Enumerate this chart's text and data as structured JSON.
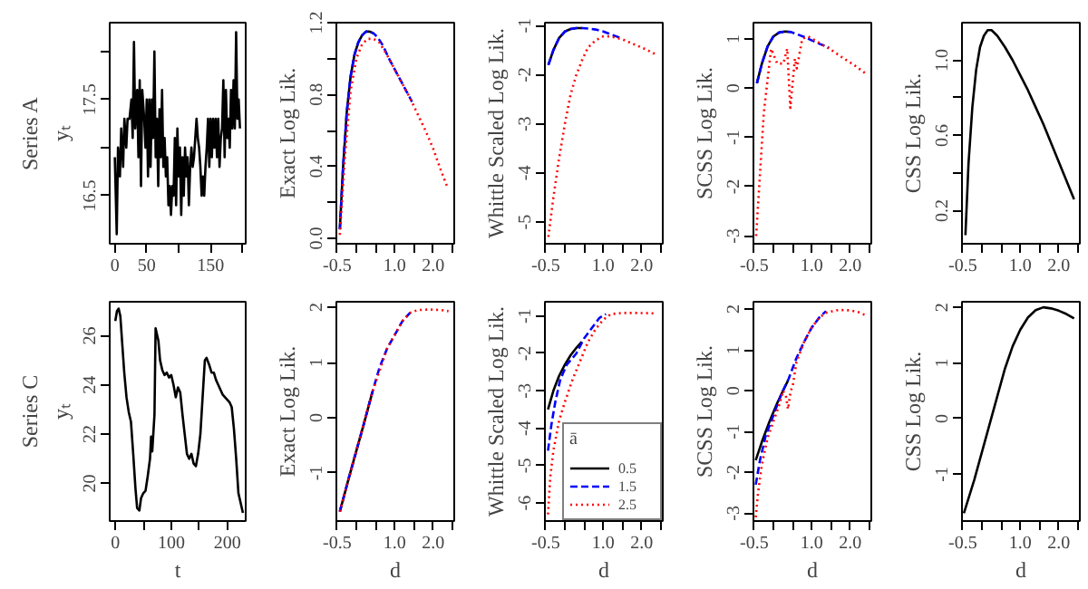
{
  "chart_data": [
    {
      "type": "line",
      "ylabel": "Series A\nyₜ",
      "xlim": [
        -8,
        205
      ],
      "ylim": [
        16.0,
        18.3
      ],
      "xticks": [
        0,
        50,
        {
          "value": 100,
          "label": null
        },
        150,
        {
          "value": 200,
          "label": null
        }
      ],
      "yticks": [
        16.5,
        {
          "value": 17,
          "label": null
        },
        17.5,
        {
          "value": 18,
          "label": null
        }
      ],
      "series": [
        {
          "color": "#000000",
          "line_style": "solid",
          "x": [
            0,
            3,
            5,
            8,
            10,
            13,
            15,
            18,
            20,
            23,
            26,
            28,
            30,
            32,
            35,
            37,
            39,
            41,
            43,
            46,
            48,
            50,
            52,
            54,
            56,
            58,
            60,
            62,
            64,
            66,
            68,
            70,
            72,
            74,
            76,
            78,
            80,
            82,
            84,
            86,
            88,
            90,
            92,
            94,
            96,
            98,
            100,
            102,
            104,
            106,
            108,
            110,
            112,
            114,
            116,
            118,
            120,
            122,
            124,
            126,
            128,
            130,
            132,
            134,
            136,
            138,
            140,
            142,
            144,
            146,
            148,
            150,
            152,
            154,
            156,
            158,
            160,
            162,
            164,
            166,
            168,
            170,
            172,
            174,
            176,
            178,
            180,
            182,
            184,
            186,
            188,
            190,
            192,
            194,
            196
          ],
          "values": [
            16.9,
            16.1,
            17.0,
            16.7,
            17.2,
            16.8,
            17.3,
            17.0,
            17.3,
            17.3,
            17.5,
            17.1,
            18.1,
            17.2,
            17.6,
            16.9,
            17.7,
            16.6,
            17.6,
            17.3,
            17.0,
            17.5,
            16.7,
            17.5,
            16.8,
            17.5,
            17.1,
            18.0,
            16.9,
            17.3,
            16.6,
            17.4,
            16.9,
            17.6,
            16.8,
            17.1,
            16.7,
            16.9,
            16.4,
            16.6,
            16.3,
            16.6,
            16.5,
            17.1,
            16.4,
            17.2,
            16.7,
            17.0,
            16.3,
            16.9,
            16.5,
            17.0,
            16.7,
            16.9,
            16.4,
            16.8,
            17.0,
            16.8,
            16.9,
            17.1,
            17.3,
            17.1,
            17.0,
            16.8,
            16.5,
            16.7,
            16.5,
            16.8,
            17.0,
            17.3,
            16.8,
            17.3,
            16.9,
            17.3,
            17.0,
            17.3,
            16.9,
            17.3,
            16.8,
            17.1,
            17.2,
            17.7,
            16.9,
            17.6,
            17.1,
            17.3,
            17.0,
            17.6,
            17.2,
            17.7,
            17.2,
            18.2,
            17.3,
            17.5,
            17.2
          ]
        }
      ]
    },
    {
      "type": "line",
      "ylabel": "Exact Log Lik.",
      "xlim": [
        -0.52,
        2.55
      ],
      "ylim": [
        -0.03,
        1.2
      ],
      "xticks": [
        -0.5,
        {
          "value": 0,
          "label": null
        },
        {
          "value": 0.5,
          "label": null
        },
        {
          "value": 1,
          "label": "1.0"
        },
        {
          "value": 1.5,
          "label": null
        },
        {
          "value": 2,
          "label": "2.0"
        },
        {
          "value": 2.5,
          "label": null
        }
      ],
      "yticks": [
        {
          "value": 0,
          "label": "0.0"
        },
        {
          "value": 0.2,
          "label": null
        },
        0.4,
        {
          "value": 0.6,
          "label": null
        },
        0.8,
        {
          "value": 1,
          "label": null
        },
        1.2
      ],
      "series": [
        {
          "color": "#000000",
          "line_style": "solid",
          "x": [
            -0.43,
            -0.35,
            -0.25,
            -0.15,
            -0.05,
            0.05,
            0.15,
            0.25,
            0.35,
            0.45
          ],
          "values": [
            0.05,
            0.38,
            0.7,
            0.9,
            1.02,
            1.09,
            1.13,
            1.15,
            1.15,
            1.14
          ]
        },
        {
          "color": "#0000ff",
          "line_style": "dashed",
          "x": [
            -0.43,
            -0.35,
            -0.25,
            -0.15,
            -0.05,
            0.05,
            0.15,
            0.25,
            0.35,
            0.45,
            0.55,
            0.7,
            0.85,
            1.0,
            1.15,
            1.3,
            1.45
          ],
          "values": [
            0.05,
            0.38,
            0.7,
            0.9,
            1.02,
            1.09,
            1.13,
            1.15,
            1.15,
            1.14,
            1.12,
            1.07,
            1.0,
            0.94,
            0.88,
            0.82,
            0.76
          ]
        },
        {
          "color": "#ff0000",
          "line_style": "dotted",
          "x": [
            -0.43,
            -0.3,
            -0.15,
            0,
            0.15,
            0.3,
            0.45,
            0.6,
            0.8,
            1.0,
            1.2,
            1.4,
            1.6,
            1.8,
            2.0,
            2.2,
            2.38
          ],
          "values": [
            0.02,
            0.45,
            0.82,
            1.0,
            1.08,
            1.11,
            1.11,
            1.09,
            1.02,
            0.94,
            0.86,
            0.78,
            0.69,
            0.6,
            0.5,
            0.38,
            0.28
          ]
        }
      ]
    },
    {
      "type": "line",
      "ylabel": "Whittle Scaled Log Lik.",
      "xlim": [
        -0.52,
        2.55
      ],
      "ylim": [
        -5.44,
        -0.94
      ],
      "xticks": [
        -0.5,
        {
          "value": 0,
          "label": null
        },
        {
          "value": 0.5,
          "label": null
        },
        {
          "value": 1,
          "label": "1.0"
        },
        {
          "value": 1.5,
          "label": null
        },
        {
          "value": 2,
          "label": "2.0"
        },
        {
          "value": 2.5,
          "label": null
        }
      ],
      "yticks": [
        -5,
        -4,
        -3,
        -2,
        -1
      ],
      "series": [
        {
          "color": "#000000",
          "line_style": "solid",
          "x": [
            -0.43,
            -0.3,
            -0.15,
            0,
            0.15,
            0.3,
            0.45
          ],
          "values": [
            -1.8,
            -1.5,
            -1.25,
            -1.12,
            -1.07,
            -1.05,
            -1.05
          ]
        },
        {
          "color": "#0000ff",
          "line_style": "dashed",
          "x": [
            -0.43,
            -0.3,
            -0.15,
            0,
            0.15,
            0.3,
            0.45,
            0.6,
            0.8,
            1.0,
            1.2,
            1.45
          ],
          "values": [
            -1.8,
            -1.5,
            -1.25,
            -1.12,
            -1.07,
            -1.05,
            -1.05,
            -1.06,
            -1.08,
            -1.12,
            -1.18,
            -1.25
          ]
        },
        {
          "color": "#ff0000",
          "line_style": "dotted",
          "x": [
            -0.43,
            -0.3,
            -0.15,
            0,
            0.15,
            0.3,
            0.45,
            0.6,
            0.8,
            1.0,
            1.2,
            1.5,
            1.8,
            2.1,
            2.4
          ],
          "values": [
            -5.3,
            -4.5,
            -3.7,
            -3.0,
            -2.4,
            -2.0,
            -1.7,
            -1.45,
            -1.3,
            -1.22,
            -1.22,
            -1.28,
            -1.38,
            -1.48,
            -1.6
          ]
        }
      ]
    },
    {
      "type": "line",
      "ylabel": "SCSS Log Lik.",
      "xlim": [
        -0.52,
        2.55
      ],
      "ylim": [
        -3.16,
        1.33
      ],
      "xticks": [
        -0.5,
        {
          "value": 0,
          "label": null
        },
        {
          "value": 0.5,
          "label": null
        },
        {
          "value": 1,
          "label": "1.0"
        },
        {
          "value": 1.5,
          "label": null
        },
        {
          "value": 2,
          "label": "2.0"
        },
        {
          "value": 2.5,
          "label": null
        }
      ],
      "yticks": [
        -3,
        -2,
        -1,
        0,
        1
      ],
      "series": [
        {
          "color": "#000000",
          "line_style": "solid",
          "x": [
            -0.43,
            -0.3,
            -0.15,
            0,
            0.15,
            0.3,
            0.45
          ],
          "values": [
            0.1,
            0.5,
            0.85,
            1.05,
            1.13,
            1.15,
            1.14
          ]
        },
        {
          "color": "#0000ff",
          "line_style": "dashed",
          "x": [
            -0.43,
            -0.3,
            -0.15,
            0,
            0.15,
            0.3,
            0.45,
            0.6,
            0.8,
            1.0,
            1.2,
            1.45
          ],
          "values": [
            0.1,
            0.5,
            0.85,
            1.05,
            1.13,
            1.15,
            1.14,
            1.1,
            1.04,
            0.97,
            0.9,
            0.82
          ]
        },
        {
          "color": "#ff0000",
          "line_style": "dotted",
          "x": [
            -0.45,
            -0.25,
            -0.06,
            0.1,
            0.26,
            0.36,
            0.44,
            0.56,
            0.61,
            0.75,
            0.9,
            1.2,
            1.5,
            1.8,
            2.1,
            2.4
          ],
          "values": [
            -3.0,
            -0.5,
            0.8,
            0.5,
            0.5,
            0.8,
            -0.4,
            0.6,
            0.4,
            1.0,
            1.05,
            0.92,
            0.78,
            0.62,
            0.47,
            0.3
          ]
        }
      ]
    },
    {
      "type": "line",
      "ylabel": "CSS Log Lik.",
      "xlim": [
        -0.52,
        2.55
      ],
      "ylim": [
        0.024,
        1.2
      ],
      "xticks": [
        -0.5,
        {
          "value": 0,
          "label": null
        },
        {
          "value": 0.5,
          "label": null
        },
        {
          "value": 1,
          "label": "1.0"
        },
        {
          "value": 1.5,
          "label": null
        },
        {
          "value": 2,
          "label": "2.0"
        },
        {
          "value": 2.5,
          "label": null
        }
      ],
      "yticks": [
        0.2,
        {
          "value": 0.4,
          "label": null
        },
        0.6,
        {
          "value": 0.8,
          "label": null
        },
        {
          "value": 1,
          "label": "1.0"
        }
      ],
      "series": [
        {
          "color": "#000000",
          "line_style": "solid",
          "x": [
            -0.43,
            -0.35,
            -0.25,
            -0.15,
            -0.05,
            0.05,
            0.15,
            0.25,
            0.4,
            0.6,
            0.8,
            1.0,
            1.2,
            1.4,
            1.6,
            1.8,
            2.0,
            2.2,
            2.4
          ],
          "values": [
            0.07,
            0.45,
            0.75,
            0.95,
            1.07,
            1.13,
            1.16,
            1.16,
            1.13,
            1.07,
            1.0,
            0.92,
            0.84,
            0.75,
            0.66,
            0.56,
            0.46,
            0.36,
            0.26
          ]
        }
      ]
    },
    {
      "type": "line",
      "ylabel": "Series C\nyₜ",
      "xlabel": "t",
      "xlim": [
        -10,
        233
      ],
      "ylim": [
        18.47,
        27.38
      ],
      "xticks": [
        0,
        {
          "value": 50,
          "label": null
        },
        100,
        {
          "value": 150,
          "label": null
        },
        200
      ],
      "yticks": [
        20,
        22,
        24,
        26
      ],
      "series": [
        {
          "color": "#000000",
          "line_style": "solid",
          "x": [
            0,
            3,
            6,
            9,
            12,
            16,
            20,
            24,
            28,
            32,
            36,
            39,
            43,
            46,
            50,
            54,
            58,
            62,
            64,
            66,
            70,
            72,
            77,
            80,
            84,
            88,
            92,
            96,
            100,
            104,
            108,
            112,
            116,
            120,
            124,
            128,
            132,
            136,
            140,
            144,
            148,
            152,
            156,
            160,
            163,
            168,
            172,
            176,
            180,
            184,
            188,
            192,
            196,
            200,
            204,
            208,
            212,
            216,
            220,
            228
          ],
          "values": [
            26.6,
            27.0,
            27.1,
            26.8,
            25.8,
            24.5,
            23.5,
            22.9,
            22.5,
            21.2,
            19.8,
            19.0,
            18.9,
            19.4,
            19.6,
            19.7,
            20.3,
            21.0,
            21.9,
            21.3,
            22.8,
            26.3,
            25.8,
            25.0,
            24.6,
            24.4,
            24.5,
            24.3,
            24.4,
            24.0,
            23.5,
            23.9,
            23.7,
            22.8,
            22.0,
            21.2,
            21.0,
            21.2,
            20.8,
            20.7,
            21.2,
            22.0,
            23.5,
            25.0,
            25.1,
            24.8,
            24.5,
            24.5,
            24.2,
            24.0,
            23.8,
            23.6,
            23.5,
            23.4,
            23.3,
            23.1,
            22.2,
            21.0,
            19.6,
            18.8
          ]
        }
      ]
    },
    {
      "type": "line",
      "ylabel": "Exact Log Lik.",
      "xlabel": "d",
      "xlim": [
        -0.52,
        2.55
      ],
      "ylim": [
        -1.87,
        2.1
      ],
      "xticks": [
        -0.5,
        {
          "value": 0,
          "label": null
        },
        {
          "value": 0.5,
          "label": null
        },
        {
          "value": 1,
          "label": "1.0"
        },
        {
          "value": 1.5,
          "label": null
        },
        {
          "value": 2,
          "label": "2.0"
        },
        {
          "value": 2.5,
          "label": null
        }
      ],
      "yticks": [
        -1,
        0,
        1,
        2
      ],
      "series": [
        {
          "color": "#000000",
          "line_style": "solid",
          "x": [
            -0.43,
            -0.2,
            0,
            0.2,
            0.42
          ],
          "values": [
            -1.7,
            -1.1,
            -0.6,
            -0.1,
            0.47
          ]
        },
        {
          "color": "#0000ff",
          "line_style": "dashed",
          "x": [
            -0.43,
            -0.2,
            0,
            0.2,
            0.42,
            0.6,
            0.8,
            1.0,
            1.2,
            1.4
          ],
          "values": [
            -1.7,
            -1.1,
            -0.6,
            -0.1,
            0.47,
            0.9,
            1.25,
            1.5,
            1.75,
            1.9
          ]
        },
        {
          "color": "#ff0000",
          "line_style": "dotted",
          "x": [
            -0.43,
            0,
            0.42,
            0.8,
            1.0,
            1.2,
            1.4,
            1.6,
            1.9,
            2.2,
            2.4
          ],
          "values": [
            -1.7,
            -0.6,
            0.47,
            1.25,
            1.5,
            1.75,
            1.9,
            1.95,
            1.96,
            1.95,
            1.93
          ]
        }
      ]
    },
    {
      "type": "line",
      "ylabel": "Whittle Scaled Log Lik.",
      "xlabel": "d",
      "xlim": [
        -0.52,
        2.55
      ],
      "ylim": [
        -6.48,
        -0.62
      ],
      "xticks": [
        -0.5,
        {
          "value": 0,
          "label": null
        },
        {
          "value": 0.5,
          "label": null
        },
        {
          "value": 1,
          "label": "1.0"
        },
        {
          "value": 1.5,
          "label": null
        },
        {
          "value": 2,
          "label": "2.0"
        },
        {
          "value": 2.5,
          "label": null
        }
      ],
      "yticks": [
        -6,
        -5,
        -4,
        -3,
        -2,
        -1
      ],
      "legend": "bottom right",
      "legend_title": "ā",
      "series": [
        {
          "name": "0.5",
          "color": "#000000",
          "line_style": "solid",
          "x": [
            -0.44,
            -0.3,
            -0.15,
            0,
            0.15,
            0.3,
            0.44
          ],
          "values": [
            -3.5,
            -3.0,
            -2.6,
            -2.3,
            -2.05,
            -1.85,
            -1.69
          ]
        },
        {
          "name": "1.5",
          "color": "#0000ff",
          "line_style": "dashed",
          "x": [
            -0.44,
            -0.35,
            -0.25,
            -0.12,
            0.05,
            0.3,
            0.5,
            0.72,
            0.9,
            1.07
          ],
          "values": [
            -4.6,
            -3.9,
            -3.3,
            -2.7,
            -2.3,
            -2.0,
            -1.6,
            -1.3,
            -1.05,
            -0.95
          ]
        },
        {
          "name": "2.5",
          "color": "#ff0000",
          "line_style": "dotted",
          "x": [
            -0.44,
            -0.38,
            -0.3,
            -0.15,
            0,
            0.2,
            0.4,
            0.6,
            0.8,
            1.0,
            1.2,
            1.5,
            1.9,
            2.4
          ],
          "values": [
            -6.3,
            -5.3,
            -4.6,
            -3.8,
            -3.3,
            -2.7,
            -2.2,
            -1.7,
            -1.35,
            -1.1,
            -0.95,
            -0.92,
            -0.92,
            -0.93
          ]
        }
      ]
    },
    {
      "type": "line",
      "ylabel": "SCSS Log Lik.",
      "xlabel": "d",
      "xlim": [
        -0.52,
        2.55
      ],
      "ylim": [
        -3.19,
        2.18
      ],
      "xticks": [
        -0.5,
        {
          "value": 0,
          "label": null
        },
        {
          "value": 0.5,
          "label": null
        },
        {
          "value": 1,
          "label": "1.0"
        },
        {
          "value": 1.5,
          "label": null
        },
        {
          "value": 2,
          "label": "2.0"
        },
        {
          "value": 2.5,
          "label": null
        }
      ],
      "yticks": [
        -3,
        -2,
        -1,
        0,
        1,
        2
      ],
      "series": [
        {
          "color": "#000000",
          "line_style": "solid",
          "x": [
            -0.46,
            -0.3,
            -0.1,
            0.1,
            0.25,
            0.38
          ],
          "values": [
            -1.7,
            -1.25,
            -0.75,
            -0.3,
            0.0,
            0.25
          ]
        },
        {
          "color": "#0000ff",
          "line_style": "dashed",
          "x": [
            -0.46,
            -0.35,
            -0.2,
            0,
            0.2,
            0.4,
            0.6,
            0.8,
            1.0,
            1.2,
            1.37
          ],
          "values": [
            -2.3,
            -1.7,
            -1.1,
            -0.6,
            -0.1,
            0.3,
            0.8,
            1.2,
            1.55,
            1.8,
            1.95
          ]
        },
        {
          "color": "#ff0000",
          "line_style": "dotted",
          "x": [
            -0.46,
            -0.4,
            -0.3,
            -0.15,
            0,
            0.15,
            0.25,
            0.33,
            0.38,
            0.45,
            0.5,
            0.6,
            0.8,
            1.0,
            1.2,
            1.4,
            1.7,
            2.0,
            2.2,
            2.4
          ],
          "values": [
            -3.1,
            -2.5,
            -1.8,
            -1.15,
            -0.75,
            -0.35,
            0.0,
            -0.15,
            -0.45,
            0.0,
            0.1,
            0.7,
            1.2,
            1.55,
            1.8,
            1.92,
            1.98,
            1.97,
            1.93,
            1.85
          ]
        }
      ]
    },
    {
      "type": "line",
      "ylabel": "CSS Log Lik.",
      "xlabel": "d",
      "xlim": [
        -0.52,
        2.55
      ],
      "ylim": [
        -1.84,
        2.1
      ],
      "xticks": [
        -0.5,
        {
          "value": 0,
          "label": null
        },
        {
          "value": 0.5,
          "label": null
        },
        {
          "value": 1,
          "label": "1.0"
        },
        {
          "value": 1.5,
          "label": null
        },
        {
          "value": 2,
          "label": "2.0"
        },
        {
          "value": 2.5,
          "label": null
        }
      ],
      "yticks": [
        -1,
        0,
        1,
        2
      ],
      "series": [
        {
          "color": "#000000",
          "line_style": "solid",
          "x": [
            -0.47,
            -0.2,
            0,
            0.2,
            0.4,
            0.6,
            0.8,
            1.0,
            1.2,
            1.4,
            1.6,
            1.8,
            2.0,
            2.2,
            2.4
          ],
          "values": [
            -1.7,
            -1.1,
            -0.6,
            -0.1,
            0.4,
            0.9,
            1.3,
            1.6,
            1.82,
            1.95,
            2.0,
            1.98,
            1.94,
            1.88,
            1.8
          ]
        }
      ]
    }
  ]
}
